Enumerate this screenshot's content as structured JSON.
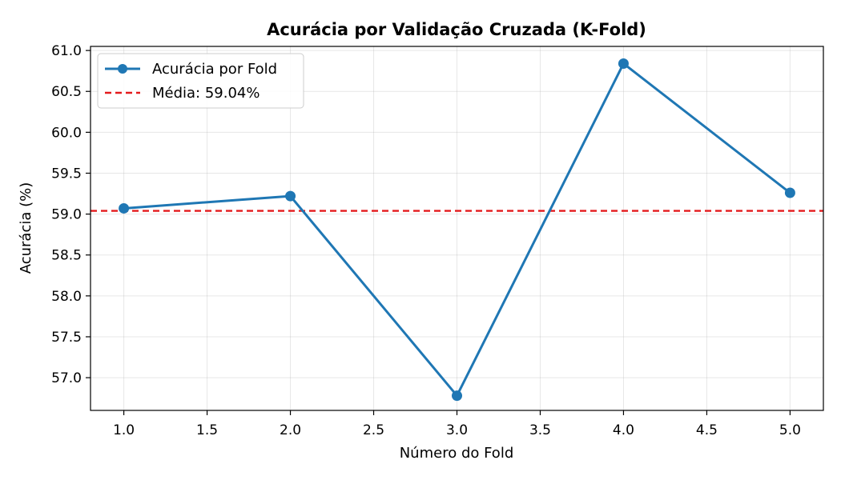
{
  "chart_data": {
    "type": "line",
    "title": "Acurácia por Validação Cruzada (K-Fold)",
    "xlabel": "Número do Fold",
    "ylabel": "Acurácia (%)",
    "xlim": [
      0.8,
      5.2
    ],
    "ylim": [
      56.6,
      61.05
    ],
    "xticks": [
      1.0,
      1.5,
      2.0,
      2.5,
      3.0,
      3.5,
      4.0,
      4.5,
      5.0
    ],
    "xtick_labels": [
      "1.0",
      "1.5",
      "2.0",
      "2.5",
      "3.0",
      "3.5",
      "4.0",
      "4.5",
      "5.0"
    ],
    "yticks": [
      57.0,
      57.5,
      58.0,
      58.5,
      59.0,
      59.5,
      60.0,
      60.5,
      61.0
    ],
    "ytick_labels": [
      "57.0",
      "57.5",
      "58.0",
      "58.5",
      "59.0",
      "59.5",
      "60.0",
      "60.5",
      "61.0"
    ],
    "grid": true,
    "legend_position": "top-left",
    "series": [
      {
        "name": "Acurácia por Fold",
        "color": "#1f77b4",
        "style": "solid-with-markers",
        "x": [
          1,
          2,
          3,
          4,
          5
        ],
        "y": [
          59.07,
          59.22,
          56.78,
          60.84,
          59.26
        ]
      }
    ],
    "reference_lines": [
      {
        "name": "Média: 59.04%",
        "color": "#e41a1c",
        "style": "dashed",
        "y": 59.04
      }
    ]
  }
}
